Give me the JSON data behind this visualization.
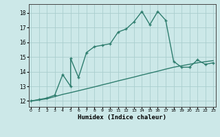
{
  "xlabel": "Humidex (Indice chaleur)",
  "bg_color": "#cce8e8",
  "grid_color": "#aacece",
  "line_color": "#2e7d6e",
  "x_ticks": [
    0,
    1,
    2,
    3,
    4,
    5,
    6,
    7,
    8,
    9,
    10,
    11,
    12,
    13,
    14,
    15,
    16,
    17,
    18,
    19,
    20,
    21,
    22,
    23
  ],
  "y_ticks": [
    12,
    13,
    14,
    15,
    16,
    17,
    18
  ],
  "xlim": [
    -0.3,
    23.3
  ],
  "ylim": [
    11.6,
    18.6
  ],
  "line1_x": [
    0,
    1,
    2,
    3,
    4,
    5,
    5,
    6,
    7,
    8,
    9,
    10,
    11,
    12,
    13,
    14,
    15,
    16,
    17,
    18,
    19,
    20,
    21,
    22,
    23
  ],
  "line1_y": [
    12.0,
    12.1,
    12.2,
    12.4,
    13.8,
    13.0,
    14.9,
    13.6,
    15.3,
    15.7,
    15.8,
    15.9,
    16.7,
    16.9,
    17.4,
    18.1,
    17.2,
    18.1,
    17.5,
    14.7,
    14.3,
    14.3,
    14.8,
    14.5,
    14.6
  ],
  "line2_x": [
    0,
    1,
    2,
    3,
    4,
    5,
    6,
    7,
    8,
    9,
    10,
    11,
    12,
    13,
    14,
    15,
    16,
    17,
    18,
    19,
    20,
    21,
    22,
    23
  ],
  "line2_y": [
    12.0,
    12.07,
    12.15,
    12.3,
    12.45,
    12.57,
    12.7,
    12.83,
    12.96,
    13.1,
    13.23,
    13.37,
    13.5,
    13.63,
    13.77,
    13.9,
    14.03,
    14.17,
    14.3,
    14.4,
    14.5,
    14.6,
    14.68,
    14.75
  ]
}
